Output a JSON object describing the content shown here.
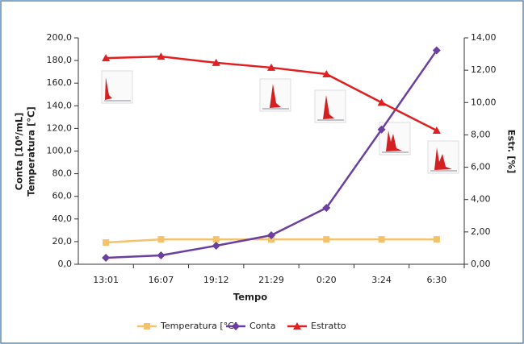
{
  "chart_data": {
    "type": "line",
    "categories": [
      "13:01",
      "16:07",
      "19:12",
      "21:29",
      "0:20",
      "3:24",
      "6:30"
    ],
    "x_label": "Tempo",
    "y_label": [
      "Conta [10⁶/mL]",
      "Temperatura [°C]"
    ],
    "y2_label": "Estr. [%]",
    "ylim": [
      0,
      200
    ],
    "yticks": [
      {
        "value": 0,
        "label": "0,0"
      },
      {
        "value": 20,
        "label": "20,0"
      },
      {
        "value": 40,
        "label": "40,0"
      },
      {
        "value": 60,
        "label": "60,0"
      },
      {
        "value": 80,
        "label": "80,0"
      },
      {
        "value": 100,
        "label": "100,0"
      },
      {
        "value": 120,
        "label": "120,0"
      },
      {
        "value": 140,
        "label": "140,0"
      },
      {
        "value": 160,
        "label": "160,0"
      },
      {
        "value": 180,
        "label": "180,0"
      },
      {
        "value": 200,
        "label": "200,0"
      }
    ],
    "y2lim": [
      0,
      14
    ],
    "y2ticks": [
      {
        "value": 0,
        "label": "0,00"
      },
      {
        "value": 2,
        "label": "2,00"
      },
      {
        "value": 4,
        "label": "4,00"
      },
      {
        "value": 6,
        "label": "6,00"
      },
      {
        "value": 8,
        "label": "8,00"
      },
      {
        "value": 10,
        "label": "10,00"
      },
      {
        "value": 12,
        "label": "12,00"
      },
      {
        "value": 14,
        "label": "14,00"
      }
    ],
    "series": [
      {
        "name": "Temperatura [°C]",
        "color": "#f5c26b",
        "marker": "square",
        "values": [
          19.2,
          22,
          22,
          22,
          22,
          22,
          22
        ]
      },
      {
        "name": "Conta",
        "color": "#6a3fa0",
        "marker": "diamond",
        "values": [
          5.7,
          7.8,
          16.4,
          25.6,
          49.8,
          119,
          189
        ]
      },
      {
        "name": "Estratto",
        "color": "#e02020",
        "marker": "triangle",
        "axis": "y2",
        "values": [
          12.75,
          12.85,
          12.46,
          12.16,
          11.76,
          10.0,
          8.27
        ]
      }
    ]
  }
}
